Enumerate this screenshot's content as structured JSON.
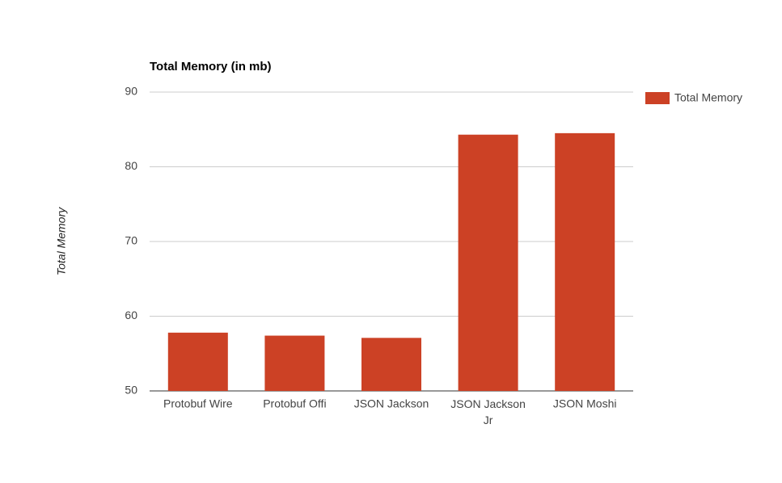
{
  "chart_data": {
    "type": "bar",
    "title": "Total Memory (in mb)",
    "y_axis_label": "Total Memory",
    "categories": [
      "Protobuf Wire",
      "Protobuf Offi",
      "JSON Jackson",
      "JSON Jackson Jr",
      "JSON Moshi"
    ],
    "series": [
      {
        "name": "Total Memory",
        "color": "#cc4125",
        "values": [
          57.8,
          57.4,
          57.1,
          84.3,
          84.5
        ]
      }
    ],
    "ylim": [
      50,
      90
    ],
    "yticks": [
      50,
      60,
      70,
      80,
      90
    ],
    "grid": true,
    "legend": "right"
  }
}
